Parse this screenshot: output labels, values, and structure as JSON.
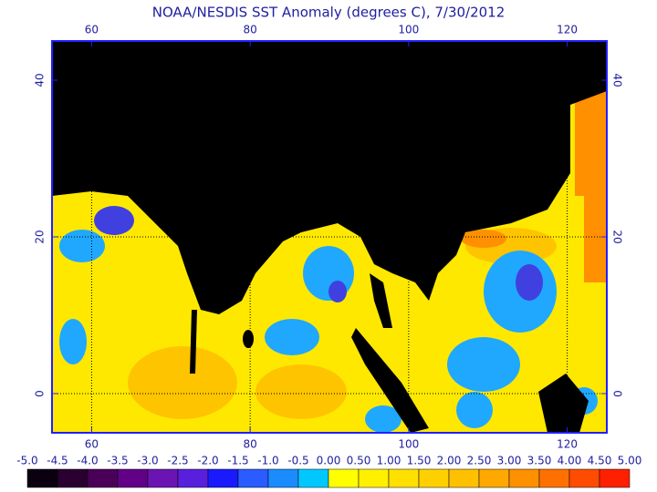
{
  "chart_data": {
    "type": "map",
    "title": "NOAA/NESDIS SST Anomaly (degrees C), 7/30/2012",
    "xlim": [
      55,
      125
    ],
    "xticks": [
      60,
      80,
      100,
      120
    ],
    "ylim": [
      -5,
      45
    ],
    "yticks": [
      0,
      20,
      40
    ],
    "grid": true,
    "colorbar": {
      "ticks": [
        {
          "value": -5,
          "label": "-5.0"
        },
        {
          "value": -4.5,
          "label": "-4.5"
        },
        {
          "value": -4,
          "label": "-4.0"
        },
        {
          "value": -3.5,
          "label": "-3.5"
        },
        {
          "value": -3,
          "label": "-3.0"
        },
        {
          "value": -2.5,
          "label": "-2.5"
        },
        {
          "value": -2,
          "label": "-2.0"
        },
        {
          "value": -1.5,
          "label": "-1.5"
        },
        {
          "value": -1,
          "label": "-1.0"
        },
        {
          "value": -0.5,
          "label": "-0.5"
        },
        {
          "value": 0,
          "label": "0.00"
        },
        {
          "value": 0.5,
          "label": "0.50"
        },
        {
          "value": 1,
          "label": "1.00"
        },
        {
          "value": 1.5,
          "label": "1.50"
        },
        {
          "value": 2,
          "label": "2.00"
        },
        {
          "value": 2.5,
          "label": "2.50"
        },
        {
          "value": 3,
          "label": "3.00"
        },
        {
          "value": 3.5,
          "label": "3.50"
        },
        {
          "value": 4,
          "label": "4.00"
        },
        {
          "value": 4.5,
          "label": "4.50"
        },
        {
          "value": 5,
          "label": "5.00"
        }
      ],
      "colors": [
        "#0a0010",
        "#2a0030",
        "#4a0058",
        "#620088",
        "#6a14b4",
        "#5820dc",
        "#1a1aff",
        "#2a5cff",
        "#1a8cff",
        "#00c8ff",
        "#ffff00",
        "#fff000",
        "#ffe000",
        "#ffd000",
        "#ffc000",
        "#ffa800",
        "#ff9000",
        "#ff7000",
        "#ff4c00",
        "#ff2000"
      ]
    }
  }
}
